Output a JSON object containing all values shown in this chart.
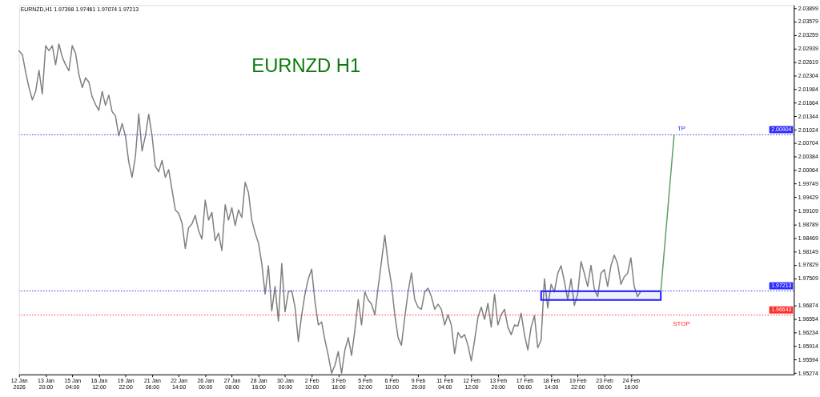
{
  "chart_data": {
    "type": "line",
    "title": "EURNZD H1",
    "subtitle": "EURNZD,H1 1.97398 1.97461 1.97074 1.97213",
    "categories": [
      "12 Jan 2026",
      null,
      null,
      null,
      null,
      null,
      null,
      null,
      "13 Jan 20:00",
      null,
      null,
      null,
      null,
      null,
      null,
      null,
      "15 Jan 04:00",
      null,
      null,
      null,
      null,
      null,
      null,
      null,
      "16 Jan 12:00",
      null,
      null,
      null,
      null,
      null,
      null,
      null,
      "19 Jan 22:00",
      null,
      null,
      null,
      null,
      null,
      null,
      null,
      "21 Jan 06:00",
      null,
      null,
      null,
      null,
      null,
      null,
      null,
      "22 Jan 14:00",
      null,
      null,
      null,
      null,
      null,
      null,
      null,
      "26 Jan 00:00",
      null,
      null,
      null,
      null,
      null,
      null,
      null,
      "27 Jan 08:00",
      null,
      null,
      null,
      null,
      null,
      null,
      null,
      "28 Jan 16:00",
      null,
      null,
      null,
      null,
      null,
      null,
      null,
      "30 Jan 00:00",
      null,
      null,
      null,
      null,
      null,
      null,
      null,
      "2 Feb 10:00",
      null,
      null,
      null,
      null,
      null,
      null,
      null,
      "3 Feb 18:00",
      null,
      null,
      null,
      null,
      null,
      null,
      null,
      "5 Feb 02:00",
      null,
      null,
      null,
      null,
      null,
      null,
      null,
      "6 Feb 10:00",
      null,
      null,
      null,
      null,
      null,
      null,
      null,
      "9 Feb 20:00",
      null,
      null,
      null,
      null,
      null,
      null,
      null,
      "11 Feb 04:00",
      null,
      null,
      null,
      null,
      null,
      null,
      null,
      "12 Feb 12:00",
      null,
      null,
      null,
      null,
      null,
      null,
      null,
      "13 Feb 20:00",
      null,
      null,
      null,
      null,
      null,
      null,
      null,
      "17 Feb 06:00",
      null,
      null,
      null,
      null,
      null,
      null,
      null,
      "18 Feb 14:00",
      null,
      null,
      null,
      null,
      null,
      null,
      null,
      "19 Feb 22:00",
      null,
      null,
      null,
      null,
      null,
      null,
      null,
      "23 Feb 08:00",
      null,
      null,
      null,
      null,
      null,
      null,
      null,
      "24 Feb 16:00",
      null,
      null,
      null,
      null,
      null,
      null,
      null,
      null,
      null,
      null,
      null,
      null,
      null,
      null,
      null,
      null,
      null,
      null,
      null,
      null,
      null,
      null,
      null,
      null,
      null,
      null,
      null,
      null,
      null,
      null,
      null,
      null,
      null,
      null,
      null,
      null,
      null,
      null,
      null,
      null,
      null,
      null,
      null,
      null,
      null,
      null,
      null,
      null,
      null
    ],
    "ylim": [
      1.9524,
      2.0397
    ],
    "yticks": [
      2.03899,
      2.03579,
      2.03259,
      2.02939,
      2.02619,
      2.02304,
      2.01984,
      2.01664,
      2.01344,
      2.01024,
      2.00704,
      2.00384,
      2.00064,
      1.99749,
      1.99429,
      1.99109,
      1.98789,
      1.98469,
      1.98149,
      1.97829,
      1.97509,
      1.96874,
      1.96554,
      1.96234,
      1.95914,
      1.95594,
      1.95274
    ],
    "series": [
      {
        "color": "#7f7f7f",
        "values": [
          2.0289,
          2.028,
          2.0238,
          2.0202,
          2.0173,
          2.0193,
          2.0243,
          2.0187,
          2.0301,
          2.0289,
          2.0301,
          2.0256,
          2.0305,
          2.0274,
          2.0256,
          2.0242,
          2.0301,
          2.0283,
          2.0233,
          2.0202,
          2.0225,
          2.0215,
          2.018,
          2.0162,
          2.0148,
          2.0193,
          2.016,
          2.0184,
          2.0145,
          2.0135,
          2.0088,
          2.0117,
          2.0088,
          2.0026,
          1.999,
          2.0039,
          2.014,
          2.0052,
          2.0088,
          2.0139,
          2.0088,
          2.0016,
          2.0003,
          2.003,
          1.999,
          2.0008,
          1.9961,
          1.9913,
          1.9905,
          1.9882,
          1.9822,
          1.9871,
          1.988,
          1.99,
          1.9864,
          1.9844,
          1.9936,
          1.9889,
          1.9907,
          1.984,
          1.9858,
          1.9817,
          1.9925,
          1.9889,
          1.9918,
          1.9876,
          1.9913,
          1.9895,
          1.9978,
          1.9954,
          1.9889,
          1.9858,
          1.9835,
          1.9786,
          1.9714,
          1.9781,
          1.9674,
          1.9732,
          1.965,
          1.9786,
          1.9672,
          1.9719,
          1.9722,
          1.9683,
          1.9602,
          1.9665,
          1.9714,
          1.975,
          1.9773,
          1.9696,
          1.9641,
          1.9648,
          1.9605,
          1.9569,
          1.9527,
          1.9546,
          1.9578,
          1.9527,
          1.9582,
          1.9611,
          1.9569,
          1.9629,
          1.9701,
          1.9641,
          1.9719,
          1.97,
          1.969,
          1.9665,
          1.973,
          1.9791,
          1.9853,
          1.9786,
          1.9737,
          1.9665,
          1.9611,
          1.9593,
          1.9659,
          1.9719,
          1.9764,
          1.9701,
          1.9683,
          1.9678,
          1.9719,
          1.9728,
          1.9708,
          1.9678,
          1.969,
          1.9678,
          1.9641,
          1.9665,
          1.9641,
          1.9573,
          1.9623,
          1.9611,
          1.9618,
          1.9593,
          1.9556,
          1.9605,
          1.9659,
          1.9683,
          1.9654,
          1.9692,
          1.9636,
          1.9714,
          1.9641,
          1.9665,
          1.9678,
          1.9636,
          1.9618,
          1.9641,
          1.9638,
          1.9669,
          1.9618,
          1.9582,
          1.9636,
          1.9663,
          1.9587,
          1.9605,
          1.975,
          1.9681,
          1.9737,
          1.9719,
          1.9763,
          1.9781,
          1.9744,
          1.9701,
          1.975,
          1.9687,
          1.9714,
          1.9791,
          1.9763,
          1.9732,
          1.9782,
          1.9726,
          1.9708,
          1.9763,
          1.9772,
          1.9732,
          1.9781,
          1.9806,
          1.9786,
          1.9737,
          1.9755,
          1.9763,
          1.98,
          1.9732,
          1.9708,
          1.9721,
          null,
          null,
          null,
          null,
          null,
          null,
          null,
          null,
          null,
          null,
          null,
          null,
          null,
          null,
          null,
          null,
          null,
          null,
          null,
          null,
          null,
          null,
          null,
          null,
          null,
          null,
          null,
          null,
          null,
          null,
          null,
          null,
          null,
          null,
          null,
          null,
          null,
          null,
          null,
          null,
          null,
          null,
          null,
          null,
          null,
          null
        ]
      },
      {
        "type": "line",
        "color": "#2020ff",
        "values": [
          null,
          null,
          null,
          null,
          null,
          null,
          null,
          null,
          null,
          null,
          null,
          null,
          null,
          null,
          null,
          null,
          null,
          null,
          null,
          null,
          null,
          null,
          null,
          null,
          null,
          null,
          null,
          null,
          null,
          null,
          null,
          null,
          null,
          null,
          null,
          null,
          null,
          null,
          null,
          null,
          null,
          null,
          null,
          null,
          null,
          null,
          null,
          null,
          null,
          null,
          null,
          null,
          null,
          null,
          null,
          null,
          null,
          null,
          null,
          null,
          null,
          null,
          null,
          null,
          null,
          null,
          null,
          null,
          null,
          null,
          null,
          null,
          null,
          null,
          null,
          null,
          null,
          null,
          null,
          null,
          null,
          null,
          null,
          null,
          null,
          null,
          null,
          null,
          null,
          null,
          null,
          null,
          null,
          null,
          null,
          null,
          null,
          null,
          null,
          null,
          null,
          null,
          null,
          null,
          null,
          null,
          null,
          null,
          null,
          null,
          null,
          null,
          null,
          null,
          null,
          null,
          null,
          null,
          null,
          null,
          null,
          null,
          null,
          null,
          null,
          null,
          null,
          null,
          null,
          null,
          null,
          null,
          null,
          null,
          null,
          null,
          null,
          null,
          null,
          null,
          null,
          null,
          null,
          null,
          null,
          null,
          null,
          null,
          null,
          null,
          null,
          null,
          null,
          null,
          null,
          null,
          null,
          1.9721,
          1.9721,
          1.9721,
          1.9721,
          1.9721,
          1.9721,
          1.9721,
          1.9721,
          1.9721,
          1.9721,
          1.9721,
          1.9721,
          1.9721,
          1.9721,
          1.9721,
          1.9721,
          1.9721,
          1.9721,
          1.9721,
          1.9721,
          1.9721,
          1.9721,
          1.9721,
          1.9721,
          1.9721,
          1.9721,
          1.9721,
          1.9721,
          1.9721,
          1.9721,
          1.9721,
          1.9721,
          1.9721,
          1.9721,
          1.9721,
          1.9721,
          1.9721,
          null,
          null,
          null,
          null,
          null,
          null,
          null,
          null,
          null,
          null,
          null,
          null,
          null,
          null,
          null,
          null,
          null,
          null,
          null,
          null,
          null,
          null,
          null,
          null,
          null,
          null,
          null,
          null,
          null,
          null,
          null,
          null,
          null,
          null,
          null,
          null,
          null,
          null,
          null,
          null
        ],
        "lower": [
          null,
          null,
          null,
          null,
          null,
          null,
          null,
          null,
          null,
          null,
          null,
          null,
          null,
          null,
          null,
          null,
          null,
          null,
          null,
          null,
          null,
          null,
          null,
          null,
          null,
          null,
          null,
          null,
          null,
          null,
          null,
          null,
          null,
          null,
          null,
          null,
          null,
          null,
          null,
          null,
          null,
          null,
          null,
          null,
          null,
          null,
          null,
          null,
          null,
          null,
          null,
          null,
          null,
          null,
          null,
          null,
          null,
          null,
          null,
          null,
          null,
          null,
          null,
          null,
          null,
          null,
          null,
          null,
          null,
          null,
          null,
          null,
          null,
          null,
          null,
          null,
          null,
          null,
          null,
          null,
          null,
          null,
          null,
          null,
          null,
          null,
          null,
          null,
          null,
          null,
          null,
          null,
          null,
          null,
          null,
          null,
          null,
          null,
          null,
          null,
          null,
          null,
          null,
          null,
          null,
          null,
          null,
          null,
          null,
          null,
          null,
          null,
          null,
          null,
          null,
          null,
          null,
          null,
          null,
          null,
          null,
          null,
          null,
          null,
          null,
          null,
          null,
          null,
          null,
          null,
          null,
          null,
          null,
          null,
          null,
          null,
          null,
          null,
          null,
          null,
          null,
          null,
          null,
          null,
          null,
          null,
          null,
          null,
          null,
          null,
          null,
          null,
          null,
          null,
          null,
          null,
          null,
          1.97,
          1.97,
          1.97,
          1.97,
          1.97,
          1.97,
          1.97,
          1.97,
          1.97,
          1.97,
          1.97,
          1.97,
          1.97,
          1.97,
          1.97,
          1.97,
          1.97,
          1.97,
          1.97,
          1.97,
          1.97,
          1.97,
          1.97,
          1.97,
          1.97,
          1.97,
          1.97,
          1.97,
          1.97,
          1.97,
          1.97,
          1.97,
          1.97,
          1.97,
          1.97,
          1.97,
          1.97,
          null,
          null,
          null,
          null,
          null,
          null,
          null,
          null,
          null,
          null,
          null,
          null,
          null,
          null,
          null,
          null,
          null,
          null,
          null,
          null,
          null,
          null,
          null,
          null,
          null,
          null,
          null,
          null,
          null,
          null,
          null,
          null,
          null,
          null,
          null,
          null,
          null,
          null,
          null,
          null
        ],
        "upper": [
          null,
          null,
          null,
          null,
          null,
          null,
          null,
          null,
          null,
          null,
          null,
          null,
          null,
          null,
          null,
          null,
          null,
          null,
          null,
          null,
          null,
          null,
          null,
          null,
          null,
          null,
          null,
          null,
          null,
          null,
          null,
          null,
          null,
          null,
          null,
          null,
          null,
          null,
          null,
          null,
          null,
          null,
          null,
          null,
          null,
          null,
          null,
          null,
          null,
          null,
          null,
          null,
          null,
          null,
          null,
          null,
          null,
          null,
          null,
          null,
          null,
          null,
          null,
          null,
          null,
          null,
          null,
          null,
          null,
          null,
          null,
          null,
          null,
          null,
          null,
          null,
          null,
          null,
          null,
          null,
          null,
          null,
          null,
          null,
          null,
          null,
          null,
          null,
          null,
          null,
          null,
          null,
          null,
          null,
          null,
          null,
          null,
          null,
          null,
          null,
          null,
          null,
          null,
          null,
          null,
          null,
          null,
          null,
          null,
          null,
          null,
          null,
          null,
          null,
          null,
          null,
          null,
          null,
          null,
          null,
          null,
          null,
          null,
          null,
          null,
          null,
          null,
          null,
          null,
          null,
          null,
          null,
          null,
          null,
          null,
          null,
          null,
          null,
          null,
          null,
          null,
          null,
          null,
          null,
          null,
          null,
          null,
          null,
          null,
          null,
          null,
          null,
          null,
          null,
          null,
          null,
          null,
          1.9721,
          1.9721,
          1.9721,
          1.9721,
          1.9721,
          1.9721,
          1.9721,
          1.9721,
          1.9721,
          1.9721,
          1.9721,
          1.9721,
          1.9721,
          1.9721,
          1.9721,
          1.9721,
          1.9721,
          1.9721,
          1.9721,
          1.9721,
          1.9721,
          1.9721,
          1.9721,
          1.9721,
          1.9721,
          1.9721,
          1.9721,
          1.9721,
          1.9721,
          1.9721,
          1.9721,
          1.9721,
          1.9721,
          1.9721,
          1.9721,
          1.9721,
          1.9721,
          null,
          null,
          null,
          null,
          null,
          null,
          null,
          null,
          null,
          null,
          null,
          null,
          null,
          null,
          null,
          null,
          null,
          null,
          null,
          null,
          null,
          null,
          null,
          null,
          null,
          null,
          null,
          null,
          null,
          null,
          null,
          null,
          null,
          null,
          null,
          null,
          null,
          null,
          null,
          null
        ]
      },
      {
        "type": "line",
        "color": "#5f9f5f",
        "values": [
          null,
          null,
          null,
          null,
          null,
          null,
          null,
          null,
          null,
          null,
          null,
          null,
          null,
          null,
          null,
          null,
          null,
          null,
          null,
          null,
          null,
          null,
          null,
          null,
          null,
          null,
          null,
          null,
          null,
          null,
          null,
          null,
          null,
          null,
          null,
          null,
          null,
          null,
          null,
          null,
          null,
          null,
          null,
          null,
          null,
          null,
          null,
          null,
          null,
          null,
          null,
          null,
          null,
          null,
          null,
          null,
          null,
          null,
          null,
          null,
          null,
          null,
          null,
          null,
          null,
          null,
          null,
          null,
          null,
          null,
          null,
          null,
          null,
          null,
          null,
          null,
          null,
          null,
          null,
          null,
          null,
          null,
          null,
          null,
          null,
          null,
          null,
          null,
          null,
          null,
          null,
          null,
          null,
          null,
          null,
          null,
          null,
          null,
          null,
          null,
          null,
          null,
          null,
          null,
          null,
          null,
          null,
          null,
          null,
          null,
          null,
          null,
          null,
          null,
          null,
          null,
          null,
          null,
          null,
          null,
          null,
          null,
          null,
          null,
          null,
          null,
          null,
          null,
          null,
          null,
          null,
          null,
          null,
          null,
          null,
          null,
          null,
          null,
          null,
          null,
          null,
          null,
          null,
          null,
          null,
          null,
          null,
          null,
          null,
          null,
          null,
          null,
          null,
          null,
          null,
          null,
          null,
          null,
          null,
          null,
          null,
          null,
          null,
          null,
          null,
          null,
          null,
          null,
          null,
          null,
          null,
          null,
          null,
          null,
          null,
          null,
          null,
          null,
          null,
          null,
          null,
          null,
          null,
          null,
          null,
          null,
          null,
          null,
          null,
          null,
          null,
          null,
          null,
          1.9721,
          1.9813,
          1.9905,
          1.9998,
          2.009,
          null,
          null,
          null,
          null,
          null,
          null,
          null,
          null,
          null,
          null,
          null,
          null,
          null,
          null,
          null,
          null,
          null,
          null,
          null,
          null,
          null,
          null,
          null,
          null,
          null,
          null,
          null,
          null,
          null,
          null,
          null,
          null,
          null,
          null,
          null,
          null
        ]
      }
    ],
    "ref_lines": [
      {
        "axis": "y",
        "value": 2.00904,
        "label": "2.00904",
        "color": "#2a2aff",
        "line_style": "dotted"
      },
      {
        "axis": "y",
        "value": 1.97213,
        "label": "1.97213",
        "color": "#2a2aff",
        "line_style": "dotted"
      },
      {
        "axis": "y",
        "value": 1.96643,
        "label": "1.96643",
        "color": "#ff2a2a",
        "line_style": "dotted"
      }
    ],
    "annotations": [
      {
        "text": "TP",
        "y": 2.00904
      },
      {
        "text": "STOP",
        "y": 1.96643
      }
    ]
  }
}
